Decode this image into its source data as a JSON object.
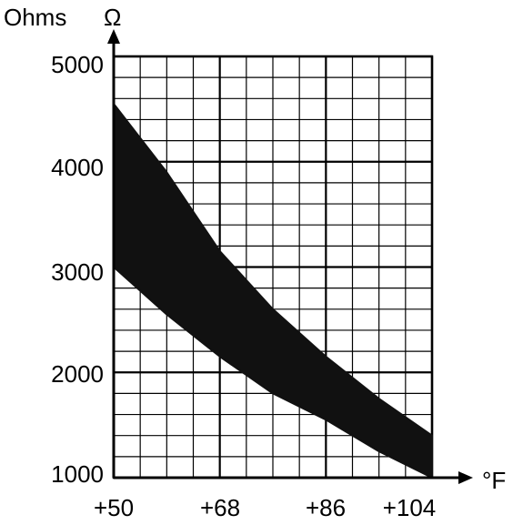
{
  "chart_data": {
    "type": "area",
    "title": "",
    "ylabel": "Ohms",
    "y_unit_symbol": "Ω",
    "xlabel": "°F",
    "x_ticks": [
      "+50",
      "+68",
      "+86",
      "+104"
    ],
    "y_ticks": [
      "1000",
      "2000",
      "3000",
      "4000",
      "5000"
    ],
    "xlim": [
      50,
      104
    ],
    "ylim": [
      1000,
      5000
    ],
    "grid": true,
    "band": {
      "x": [
        50,
        59,
        68,
        77,
        86,
        95,
        104
      ],
      "upper": [
        4550,
        3900,
        3150,
        2600,
        2150,
        1750,
        1400
      ],
      "lower": [
        3000,
        2550,
        2150,
        1800,
        1550,
        1250,
        1000
      ]
    },
    "colors": {
      "band": "#111111",
      "grid": "#000000",
      "axis": "#000000"
    }
  }
}
